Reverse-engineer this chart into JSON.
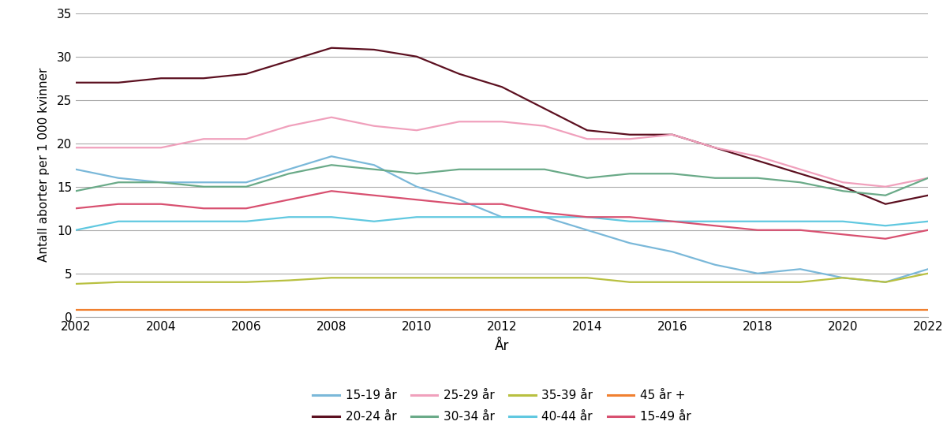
{
  "years": [
    2002,
    2003,
    2004,
    2005,
    2006,
    2007,
    2008,
    2009,
    2010,
    2011,
    2012,
    2013,
    2014,
    2015,
    2016,
    2017,
    2018,
    2019,
    2020,
    2021,
    2022
  ],
  "series": {
    "15-19 år": [
      17.0,
      16.0,
      15.5,
      15.5,
      15.5,
      17.0,
      18.5,
      17.5,
      15.0,
      13.5,
      11.5,
      11.5,
      10.0,
      8.5,
      7.5,
      6.0,
      5.0,
      5.5,
      4.5,
      4.0,
      5.5
    ],
    "20-24 år": [
      27.0,
      27.0,
      27.5,
      27.5,
      28.0,
      29.5,
      31.0,
      30.8,
      30.0,
      28.0,
      26.5,
      24.0,
      21.5,
      21.0,
      21.0,
      19.5,
      18.0,
      16.5,
      15.0,
      13.0,
      14.0
    ],
    "25-29 år": [
      19.5,
      19.5,
      19.5,
      20.5,
      20.5,
      22.0,
      23.0,
      22.0,
      21.5,
      22.5,
      22.5,
      22.0,
      20.5,
      20.5,
      21.0,
      19.5,
      18.5,
      17.0,
      15.5,
      15.0,
      16.0
    ],
    "30-34 år": [
      14.5,
      15.5,
      15.5,
      15.0,
      15.0,
      16.5,
      17.5,
      17.0,
      16.5,
      17.0,
      17.0,
      17.0,
      16.0,
      16.5,
      16.5,
      16.0,
      16.0,
      15.5,
      14.5,
      14.0,
      16.0
    ],
    "35-39 år": [
      3.8,
      4.0,
      4.0,
      4.0,
      4.0,
      4.2,
      4.5,
      4.5,
      4.5,
      4.5,
      4.5,
      4.5,
      4.5,
      4.0,
      4.0,
      4.0,
      4.0,
      4.0,
      4.5,
      4.0,
      5.0
    ],
    "40-44 år": [
      10.0,
      11.0,
      11.0,
      11.0,
      11.0,
      11.5,
      11.5,
      11.0,
      11.5,
      11.5,
      11.5,
      11.5,
      11.5,
      11.0,
      11.0,
      11.0,
      11.0,
      11.0,
      11.0,
      10.5,
      11.0
    ],
    "45 år +": [
      0.8,
      0.8,
      0.8,
      0.8,
      0.8,
      0.8,
      0.8,
      0.8,
      0.8,
      0.8,
      0.8,
      0.8,
      0.8,
      0.8,
      0.8,
      0.8,
      0.8,
      0.8,
      0.8,
      0.8,
      0.8
    ],
    "15-49 år": [
      12.5,
      13.0,
      13.0,
      12.5,
      12.5,
      13.5,
      14.5,
      14.0,
      13.5,
      13.0,
      13.0,
      12.0,
      11.5,
      11.5,
      11.0,
      10.5,
      10.0,
      10.0,
      9.5,
      9.0,
      10.0
    ]
  },
  "colors": {
    "15-19 år": "#7ab8d9",
    "20-24 år": "#5c1020",
    "25-29 år": "#f0a0bc",
    "30-34 år": "#6aaa88",
    "35-39 år": "#b8c040",
    "40-44 år": "#60c8e0",
    "45 år +": "#f08030",
    "15-49 år": "#d85070"
  },
  "ylabel": "Antall aborter per 1 000 kvinner",
  "xlabel": "År",
  "ylim": [
    0,
    35
  ],
  "yticks": [
    0,
    5,
    10,
    15,
    20,
    25,
    30,
    35
  ],
  "xlim": [
    2002,
    2022
  ],
  "xticks": [
    2002,
    2004,
    2006,
    2008,
    2010,
    2012,
    2014,
    2016,
    2018,
    2020,
    2022
  ],
  "background_color": "#ffffff",
  "grid_color": "#aaaaaa",
  "legend_order": [
    "15-19 år",
    "20-24 år",
    "25-29 år",
    "30-34 år",
    "35-39 år",
    "40-44 år",
    "45 år +",
    "15-49 år"
  ]
}
